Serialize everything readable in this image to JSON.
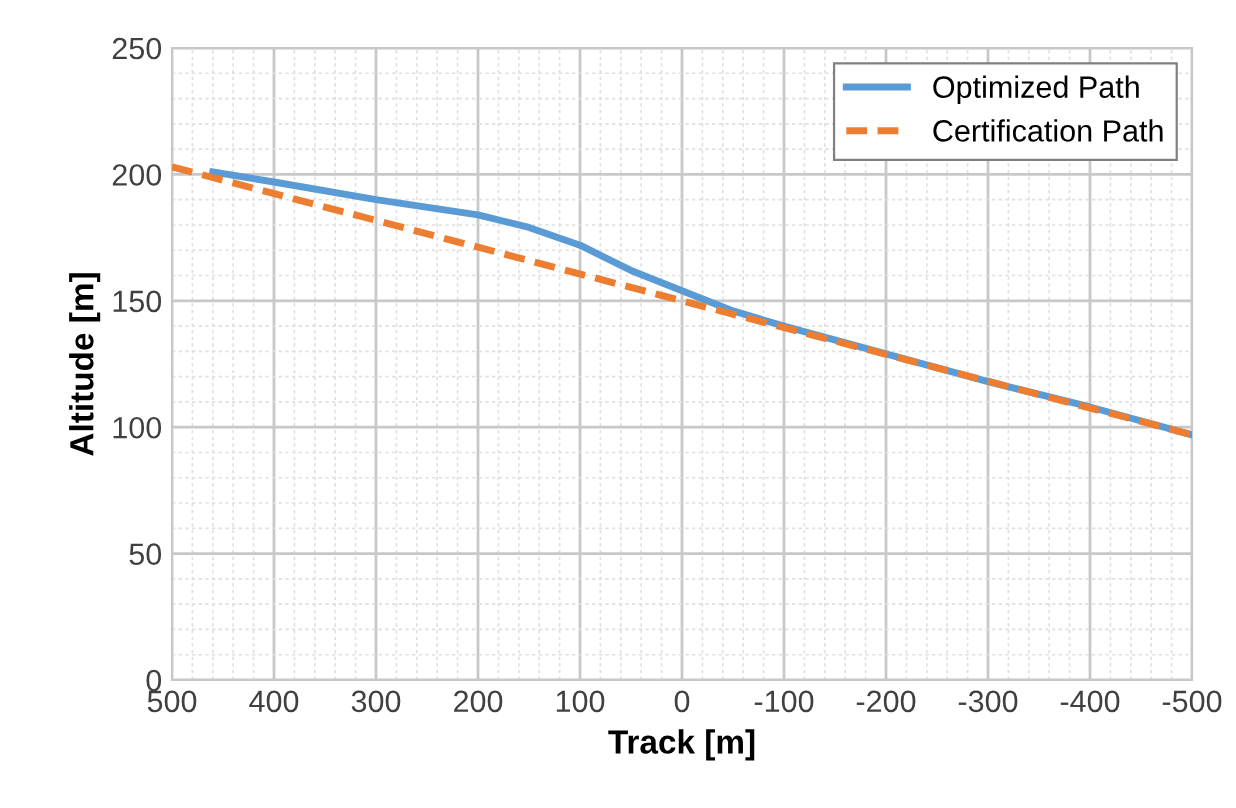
{
  "chart_data": {
    "type": "line",
    "xlabel": "Track [m]",
    "ylabel": "Altitude [m]",
    "xlim": [
      500,
      -500
    ],
    "xticks": [
      500,
      400,
      300,
      200,
      100,
      0,
      -100,
      -200,
      -300,
      -400,
      -500
    ],
    "ylim": [
      0,
      250
    ],
    "yticks": [
      0,
      50,
      100,
      150,
      200,
      250
    ],
    "grid": true,
    "legend": "top right",
    "series": [
      {
        "name": "Optimized Path",
        "color": "#5b9bd5",
        "line_style": "solid",
        "x": [
          460,
          400,
          300,
          200,
          150,
          100,
          50,
          0,
          -50,
          -100,
          -200,
          -300,
          -400,
          -500
        ],
        "values": [
          201,
          197,
          190,
          184,
          179,
          172,
          162,
          154,
          146,
          140,
          129,
          118,
          108,
          97
        ]
      },
      {
        "name": "Certification Path",
        "color": "#ed7d31",
        "line_style": "dashed",
        "x": [
          500,
          -500
        ],
        "values": [
          203,
          97
        ]
      }
    ]
  }
}
